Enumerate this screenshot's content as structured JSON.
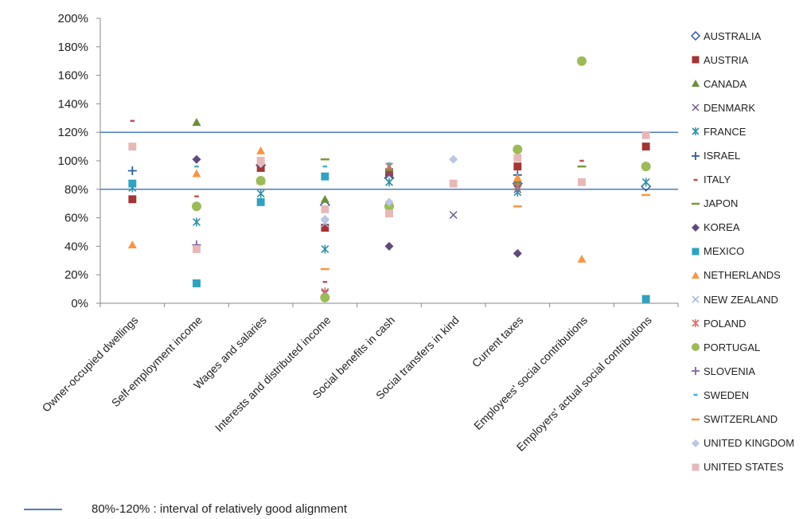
{
  "chart_data": {
    "type": "scatter",
    "title": "",
    "xlabel": "",
    "ylabel": "",
    "ylim": [
      0,
      200
    ],
    "y_ticks": [
      "0%",
      "20%",
      "40%",
      "60%",
      "80%",
      "100%",
      "120%",
      "140%",
      "160%",
      "180%",
      "200%"
    ],
    "categories": [
      "Owner-occupied dwellings",
      "Self-employment income",
      "Wages and salaries",
      "Interests and distributed income",
      "Social benefits in cash",
      "Social transfers in kind",
      "Current taxes",
      "Employees' social contributions",
      "Employers' actual social contributions"
    ],
    "reference_lines": [
      80,
      120
    ],
    "grid": false,
    "legend_position": "right",
    "series": [
      {
        "name": "AUSTRALIA",
        "marker": "diamond-open",
        "color": "#2e5c99",
        "values": [
          null,
          null,
          97,
          69,
          88,
          null,
          84,
          null,
          82
        ]
      },
      {
        "name": "AUSTRIA",
        "marker": "square",
        "color": "#a33535",
        "values": [
          73,
          null,
          95,
          53,
          92,
          null,
          96,
          null,
          110
        ]
      },
      {
        "name": "CANADA",
        "marker": "triangle",
        "color": "#6b8e3a",
        "values": [
          null,
          127,
          86,
          73,
          95,
          null,
          85,
          null,
          null
        ]
      },
      {
        "name": "DENMARK",
        "marker": "x",
        "color": "#6d5b8f",
        "values": [
          null,
          null,
          100,
          7,
          90,
          62,
          80,
          null,
          null
        ]
      },
      {
        "name": "FRANCE",
        "marker": "star",
        "color": "#2f8fa3",
        "values": [
          81,
          57,
          77,
          38,
          85,
          null,
          78,
          null,
          85
        ]
      },
      {
        "name": "ISRAEL",
        "marker": "plus",
        "color": "#2e5c99",
        "values": [
          93,
          null,
          null,
          null,
          null,
          null,
          90,
          null,
          null
        ]
      },
      {
        "name": "ITALY",
        "marker": "dash-short",
        "color": "#c0504d",
        "values": [
          128,
          75,
          null,
          15,
          null,
          null,
          null,
          100,
          null
        ]
      },
      {
        "name": "JAPON",
        "marker": "dash",
        "color": "#7a9a3c",
        "values": [
          null,
          null,
          null,
          101,
          null,
          null,
          null,
          96,
          null
        ]
      },
      {
        "name": "KOREA",
        "marker": "diamond",
        "color": "#604a7b",
        "values": [
          null,
          101,
          null,
          null,
          40,
          null,
          35,
          null,
          null
        ]
      },
      {
        "name": "MEXICO",
        "marker": "square",
        "color": "#31a2c0",
        "values": [
          84,
          14,
          71,
          89,
          null,
          null,
          null,
          null,
          3
        ]
      },
      {
        "name": "NETHERLANDS",
        "marker": "triangle",
        "color": "#f79646",
        "values": [
          41,
          91,
          107,
          null,
          null,
          null,
          88,
          31,
          null
        ]
      },
      {
        "name": "NEW ZEALAND",
        "marker": "x",
        "color": "#9bb7d9",
        "values": [
          null,
          null,
          null,
          56,
          null,
          null,
          null,
          null,
          null
        ]
      },
      {
        "name": "POLAND",
        "marker": "star",
        "color": "#d9706c",
        "values": [
          null,
          null,
          null,
          8,
          96,
          null,
          82,
          null,
          null
        ]
      },
      {
        "name": "PORTUGAL",
        "marker": "circle",
        "color": "#9bbb59",
        "values": [
          null,
          68,
          86,
          4,
          68,
          null,
          108,
          170,
          96
        ]
      },
      {
        "name": "SLOVENIA",
        "marker": "plus",
        "color": "#8064a2",
        "values": [
          null,
          41,
          null,
          null,
          null,
          null,
          null,
          null,
          null
        ]
      },
      {
        "name": "SWEDEN",
        "marker": "dash-short",
        "color": "#4bacc6",
        "values": [
          null,
          96,
          null,
          96,
          98,
          null,
          null,
          null,
          null
        ]
      },
      {
        "name": "SWITZERLAND",
        "marker": "dash",
        "color": "#f79646",
        "values": [
          null,
          null,
          null,
          24,
          null,
          null,
          68,
          null,
          76
        ]
      },
      {
        "name": "UNITED KINGDOM",
        "marker": "diamond",
        "color": "#b9c7e2",
        "values": [
          null,
          null,
          98,
          59,
          71,
          101,
          null,
          null,
          null
        ]
      },
      {
        "name": "UNITED STATES",
        "marker": "square",
        "color": "#e6b9b8",
        "values": [
          110,
          38,
          100,
          66,
          63,
          84,
          102,
          85,
          118
        ]
      }
    ],
    "annotation": "80%-120% : interval of relatively good alignment"
  }
}
